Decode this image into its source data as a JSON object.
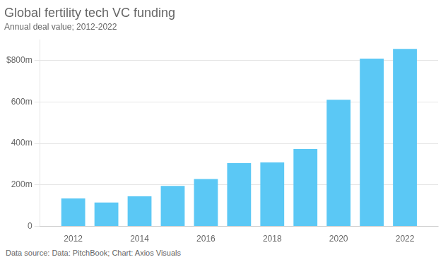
{
  "chart_data": {
    "type": "bar",
    "title": "Global fertility tech VC funding",
    "subtitle": "Annual deal value; 2012-2022",
    "footnote": "Data source: Data: PitchBook; Chart: Axios Visuals",
    "x": [
      2012,
      2013,
      2014,
      2015,
      2016,
      2017,
      2018,
      2019,
      2020,
      2021,
      2022
    ],
    "values": [
      135,
      115,
      145,
      195,
      228,
      305,
      308,
      373,
      610,
      808,
      855
    ],
    "color": "#5bc8f5",
    "xlim": [
      2011,
      2023
    ],
    "xticks": [
      2012,
      2014,
      2016,
      2018,
      2020,
      2022
    ],
    "ylim": [
      0,
      900
    ],
    "yticks": [
      0,
      {
        "value": 200,
        "label": "200m"
      },
      {
        "value": 400,
        "label": "400m"
      },
      {
        "value": 600,
        "label": "600m"
      },
      {
        "value": 800,
        "label": "$800m"
      }
    ],
    "grid": true
  }
}
